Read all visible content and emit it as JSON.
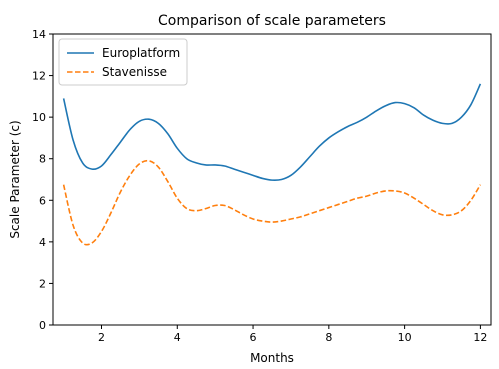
{
  "chart_data": {
    "type": "line",
    "title": "Comparison of scale parameters",
    "xlabel": "Months",
    "ylabel": "Scale Parameter (c)",
    "xlim": [
      0.72,
      12.28
    ],
    "ylim": [
      0,
      14
    ],
    "xticks": [
      2,
      4,
      6,
      8,
      10,
      12
    ],
    "yticks": [
      0,
      2,
      4,
      6,
      8,
      10,
      12,
      14
    ],
    "grid": false,
    "legend_position": "upper-left",
    "x": [
      1.0,
      1.25,
      1.5,
      1.75,
      2.0,
      2.25,
      2.5,
      2.75,
      3.0,
      3.25,
      3.5,
      3.75,
      4.0,
      4.25,
      4.5,
      4.75,
      5.0,
      5.25,
      5.5,
      5.75,
      6.0,
      6.25,
      6.5,
      6.75,
      7.0,
      7.25,
      7.5,
      7.75,
      8.0,
      8.25,
      8.5,
      8.75,
      9.0,
      9.25,
      9.5,
      9.75,
      10.0,
      10.25,
      10.5,
      10.75,
      11.0,
      11.25,
      11.5,
      11.75,
      12.0
    ],
    "series": [
      {
        "name": "Europlatform",
        "color": "#1f77b4",
        "linestyle": "solid",
        "values": [
          10.9,
          8.9,
          7.8,
          7.5,
          7.65,
          8.2,
          8.8,
          9.4,
          9.8,
          9.9,
          9.7,
          9.2,
          8.5,
          8.0,
          7.8,
          7.7,
          7.7,
          7.65,
          7.5,
          7.35,
          7.2,
          7.05,
          6.97,
          7.0,
          7.2,
          7.6,
          8.1,
          8.6,
          9.0,
          9.3,
          9.55,
          9.75,
          10.0,
          10.3,
          10.55,
          10.7,
          10.65,
          10.45,
          10.1,
          9.85,
          9.7,
          9.7,
          10.0,
          10.6,
          11.6
        ]
      },
      {
        "name": "Stavenisse",
        "color": "#ff7f0e",
        "linestyle": "dashed",
        "values": [
          6.75,
          4.8,
          3.95,
          3.95,
          4.5,
          5.4,
          6.4,
          7.2,
          7.75,
          7.9,
          7.6,
          6.9,
          6.1,
          5.6,
          5.5,
          5.6,
          5.75,
          5.75,
          5.55,
          5.3,
          5.1,
          5.0,
          4.95,
          5.0,
          5.1,
          5.2,
          5.35,
          5.5,
          5.65,
          5.8,
          5.95,
          6.1,
          6.2,
          6.35,
          6.45,
          6.45,
          6.35,
          6.1,
          5.8,
          5.5,
          5.3,
          5.3,
          5.5,
          6.0,
          6.75
        ]
      }
    ]
  }
}
